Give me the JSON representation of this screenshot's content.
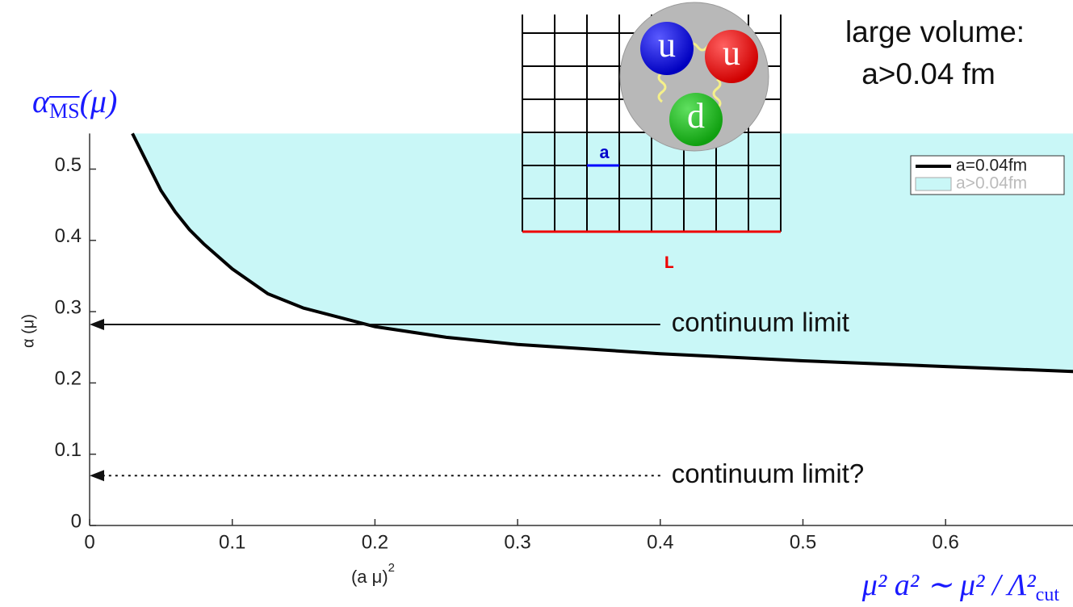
{
  "chart_data": {
    "type": "line",
    "y_label": "α (μ)",
    "x_label": {
      "text": "(a μ)",
      "sup": "2"
    },
    "y_math_label": {
      "text": "α",
      "sub": "MS",
      "tail": "(μ)"
    },
    "x_math_label": {
      "text": "μ² a² ∼ μ² / Λ²",
      "sub": "cut"
    },
    "xlim": [
      0,
      0.69
    ],
    "ylim": [
      0,
      0.55
    ],
    "xticks": [
      0,
      0.1,
      0.2,
      0.3,
      0.4,
      0.5,
      0.6
    ],
    "yticks": [
      0,
      0.1,
      0.2,
      0.3,
      0.4,
      0.5
    ],
    "grid": false,
    "legend": "upper right",
    "x": [
      0.03,
      0.035,
      0.04,
      0.05,
      0.06,
      0.07,
      0.08,
      0.1,
      0.125,
      0.15,
      0.2,
      0.25,
      0.3,
      0.4,
      0.5,
      0.6,
      0.69
    ],
    "series": [
      {
        "name": "a=0.04fm",
        "color": "#000000",
        "values": [
          0.55,
          0.53,
          0.51,
          0.47,
          0.44,
          0.415,
          0.395,
          0.36,
          0.325,
          0.305,
          0.279,
          0.264,
          0.254,
          0.241,
          0.231,
          0.223,
          0.216
        ]
      },
      {
        "name": "a>0.04fm",
        "color": "#c9f7f7",
        "fill": "above"
      }
    ],
    "annotations": [
      {
        "text": "continuum limit",
        "x": 0.4,
        "y": 0.282,
        "style": "solid"
      },
      {
        "text": "continuum limit?",
        "x": 0.4,
        "y": 0.07,
        "style": "dotted"
      }
    ],
    "inset": {
      "lattice_spacing": "a",
      "box_size": "L",
      "quarks": [
        "u",
        "u",
        "d"
      ],
      "caption": [
        "large volume:",
        "a>0.04 fm"
      ]
    }
  }
}
